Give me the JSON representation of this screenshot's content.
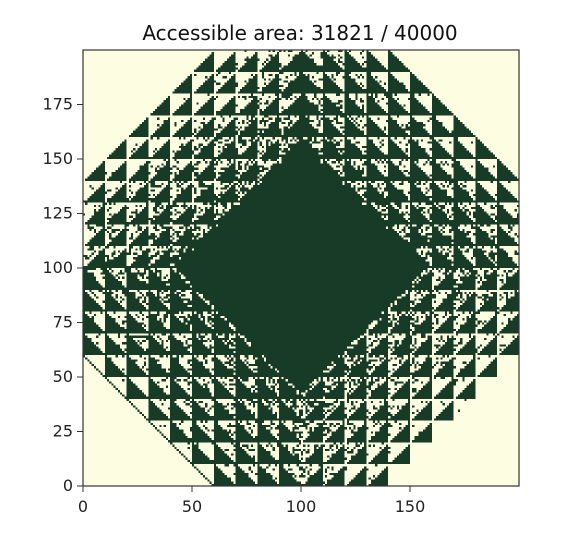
{
  "chart_data": {
    "type": "heatmap",
    "title": "Accessible area: 31821 / 40000",
    "xlabel": "",
    "ylabel": "",
    "xlim": [
      0,
      200
    ],
    "ylim": [
      0,
      200
    ],
    "x_ticks": [
      0,
      50,
      100,
      150
    ],
    "y_ticks": [
      0,
      25,
      50,
      75,
      100,
      125,
      150,
      175
    ],
    "x_tick_labels": [
      "0",
      "50",
      "100",
      "150"
    ],
    "y_tick_labels": [
      "0",
      "25",
      "50",
      "75",
      "100",
      "125",
      "150",
      "175"
    ],
    "grid": false,
    "grid_size": [
      200,
      200
    ],
    "accessible_cells": 31821,
    "total_cells": 40000,
    "colors": {
      "accessible": "#173b27",
      "inaccessible": "#fdfde2"
    }
  }
}
